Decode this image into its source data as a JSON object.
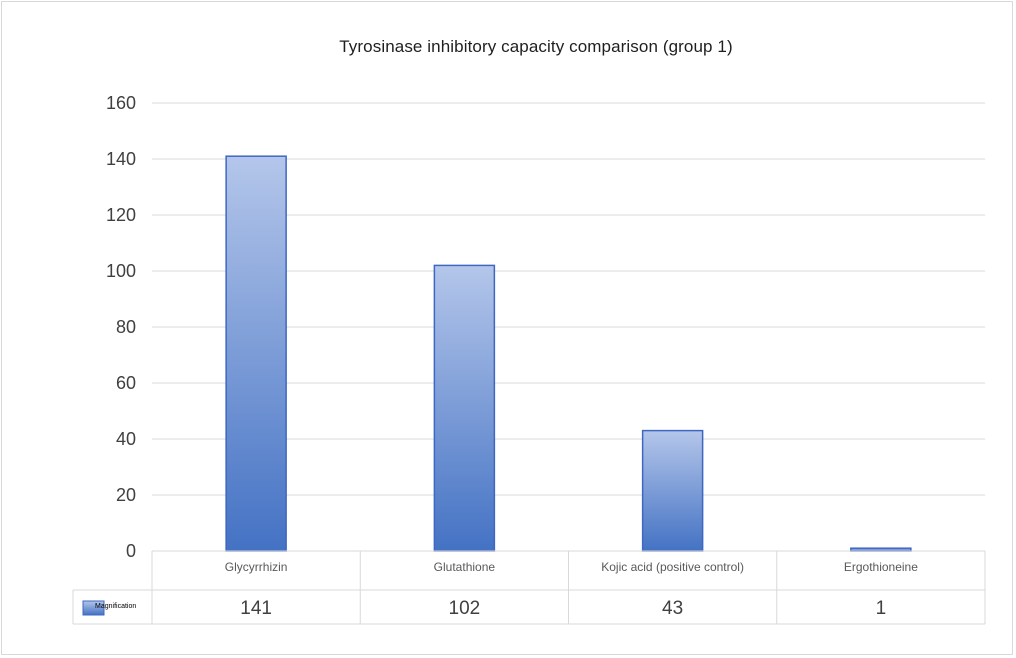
{
  "chart_data": {
    "type": "bar",
    "title": "Tyrosinase inhibitory capacity comparison (group 1)",
    "categories": [
      "Glycyrrhizin",
      "Glutathione",
      "Kojic acid (positive control)",
      "Ergothioneine"
    ],
    "series": [
      {
        "name": "Magnification",
        "values": [
          141,
          102,
          43,
          1
        ]
      }
    ],
    "ylim": [
      0,
      160
    ],
    "yticks": [
      0,
      20,
      40,
      60,
      80,
      100,
      120,
      140,
      160
    ],
    "grid": true,
    "data_table": true,
    "colors": {
      "bar_top": "#b4c6ea",
      "bar_bottom": "#4472c4",
      "bar_edge": "#3f67c2",
      "grid": "#d9d9d9"
    }
  }
}
